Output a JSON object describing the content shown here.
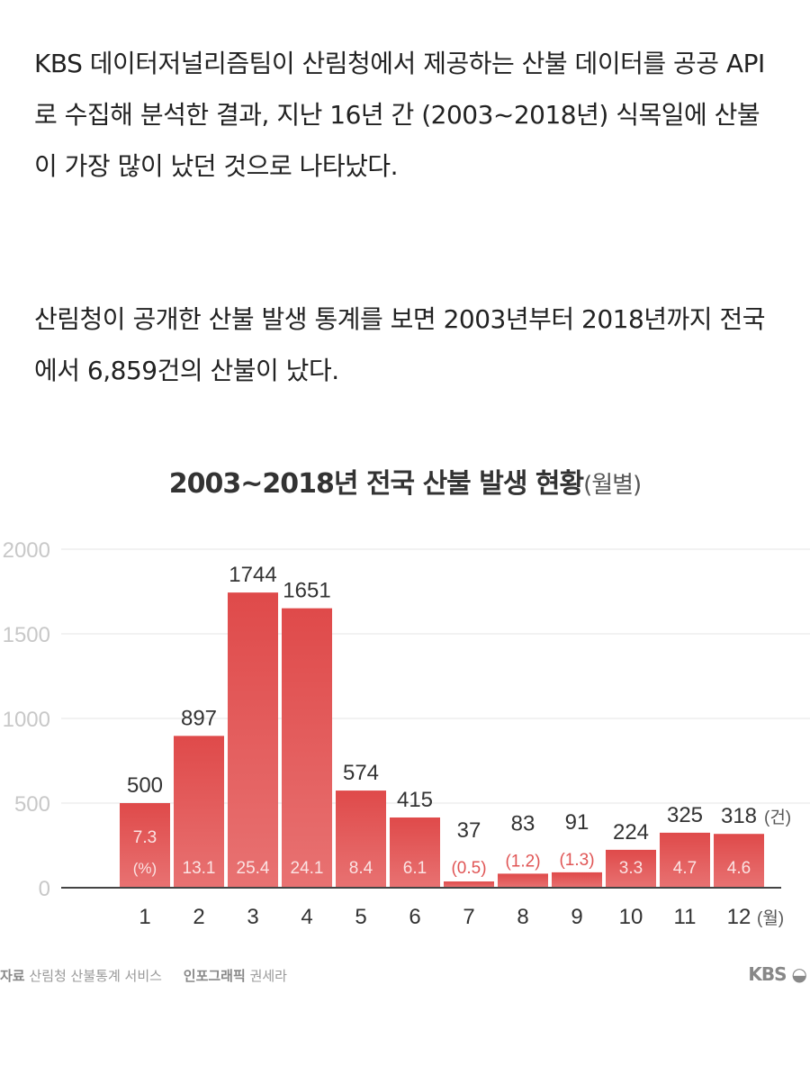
{
  "article": {
    "paragraph1": "KBS 데이터저널리즘팀이 산림청에서 제공하는 산불 데이터를 공공 API로 수집해 분석한 결과, 지난 16년 간 (2003~2018년) 식목일에 산불이 가장 많이 났던 것으로 나타났다.",
    "paragraph2": "산림청이 공개한 산불 발생 통계를 보면 2003년부터 2018년까지 전국에서 6,859건의 산불이 났다."
  },
  "chart_data": {
    "type": "bar",
    "title": "2003~2018년 전국 산불 발생 현황",
    "title_suffix": "(월별)",
    "categories": [
      "1",
      "2",
      "3",
      "4",
      "5",
      "6",
      "7",
      "8",
      "9",
      "10",
      "11",
      "12"
    ],
    "x_unit": "(월)",
    "values": [
      500,
      897,
      1744,
      1651,
      574,
      415,
      37,
      83,
      91,
      224,
      325,
      318
    ],
    "value_unit": "(건)",
    "percent_labels": [
      "7.3",
      "13.1",
      "25.4",
      "24.1",
      "8.4",
      "6.1",
      "(0.5)",
      "(1.2)",
      "(1.3)",
      "3.3",
      "4.7",
      "4.6"
    ],
    "percent_unit": "(%)",
    "yticks": [
      "0",
      "500",
      "1000",
      "1500",
      "2000"
    ],
    "ylim": [
      0,
      2000
    ],
    "grid": true,
    "colors": {
      "bar": "#e05555",
      "bar_light": "#e87070",
      "outside_percent": "#e05555"
    }
  },
  "footer": {
    "source_label": "자료",
    "source": "산림청 산불통계 서비스",
    "credit_label": "인포그래픽",
    "credit": "권세라",
    "logo": "KBS"
  }
}
